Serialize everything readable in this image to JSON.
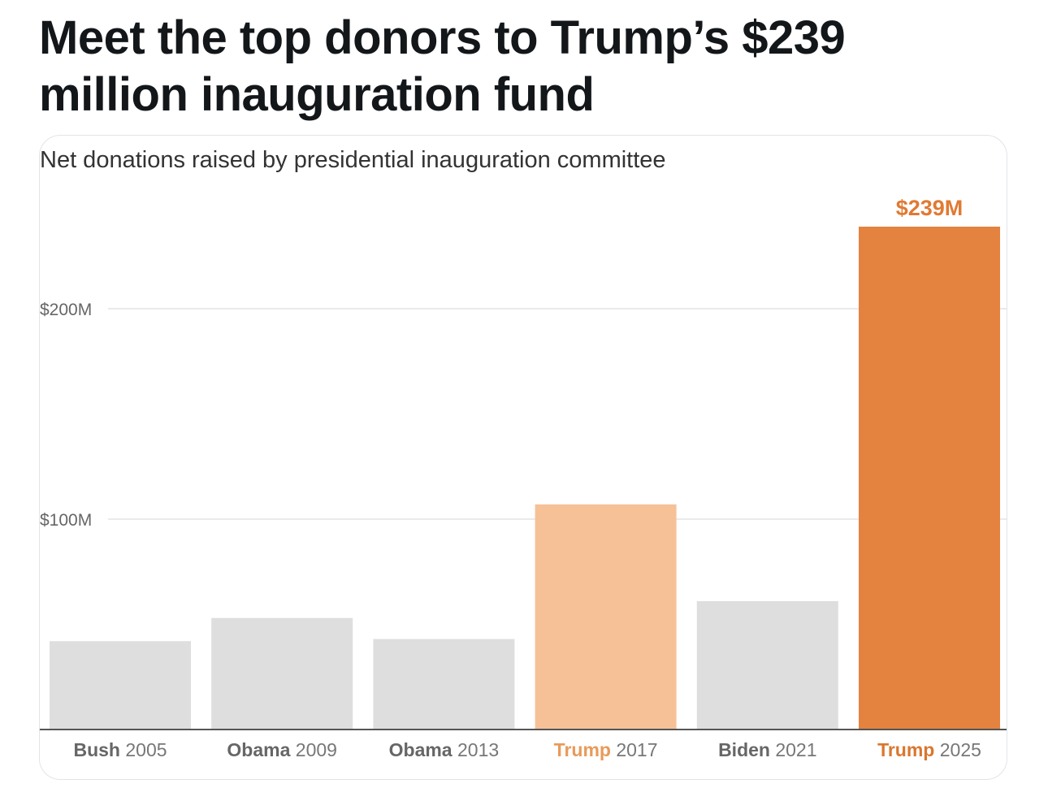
{
  "headline": "Meet the top donors to Trump’s $239 million inauguration fund",
  "chart_data": {
    "type": "bar",
    "subtitle": "Net donations raised by presidential inauguration committee",
    "categories": [
      {
        "name": "Bush",
        "year": "2005"
      },
      {
        "name": "Obama",
        "year": "2009"
      },
      {
        "name": "Obama",
        "year": "2013"
      },
      {
        "name": "Trump",
        "year": "2017"
      },
      {
        "name": "Biden",
        "year": "2021"
      },
      {
        "name": "Trump",
        "year": "2025"
      }
    ],
    "values": [
      42,
      53,
      43,
      107,
      61,
      239
    ],
    "bar_colors": [
      "#dedede",
      "#dedede",
      "#dedede",
      "#f6c197",
      "#dedede",
      "#e4823f"
    ],
    "label_colors": [
      "#666666",
      "#666666",
      "#666666",
      "#e89a5a",
      "#666666",
      "#d9772f"
    ],
    "value_labels": [
      null,
      null,
      null,
      null,
      null,
      "$239M"
    ],
    "value_label_color": "#e07a33",
    "yticks": [
      {
        "value": 100,
        "label": "$100M"
      },
      {
        "value": 200,
        "label": "$200M"
      }
    ],
    "ylim": [
      0,
      260
    ],
    "grid": true,
    "legend": "none",
    "colors": {
      "grid": "#e4e4e4",
      "axis": "#555555",
      "tick_text": "#666666"
    }
  }
}
